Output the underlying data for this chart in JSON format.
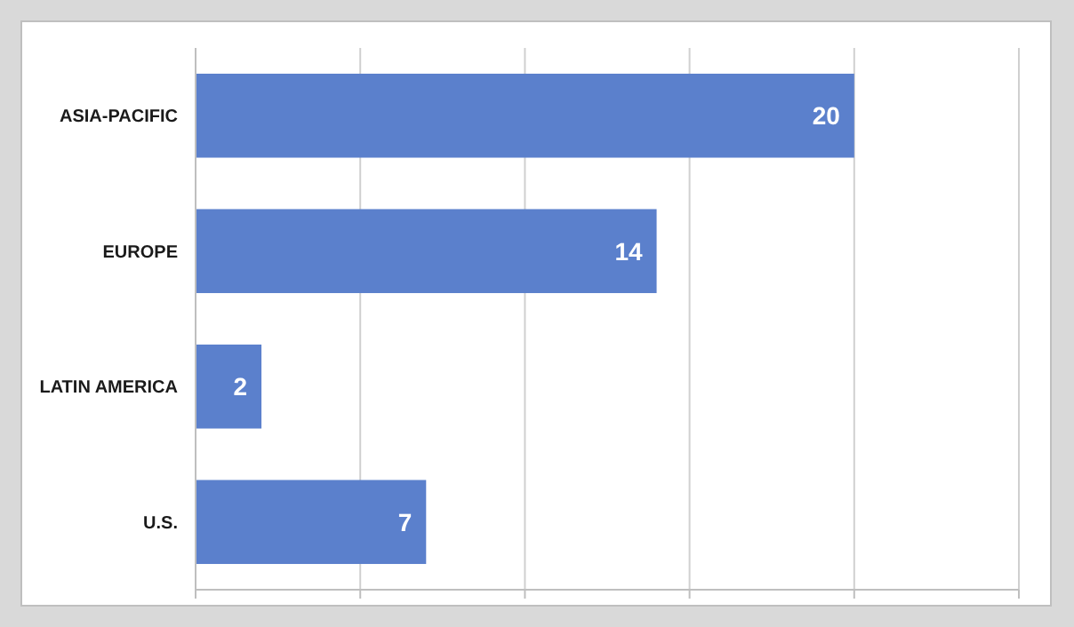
{
  "chart_data": {
    "type": "bar",
    "orientation": "horizontal",
    "categories": [
      "ASIA-PACIFIC",
      "EUROPE",
      "LATIN AMERICA",
      "U.S."
    ],
    "values": [
      20,
      14,
      2,
      7
    ],
    "color": "#5b80cc",
    "data_labels": true,
    "xlim": [
      0,
      25
    ],
    "xticks": [
      {
        "value": 0,
        "label": null
      },
      {
        "value": 5,
        "label": null
      },
      {
        "value": 10,
        "label": null
      },
      {
        "value": 15,
        "label": null
      },
      {
        "value": 20,
        "label": null
      },
      {
        "value": 25,
        "label": null
      }
    ],
    "grid": "x",
    "tick_labels": "y"
  }
}
